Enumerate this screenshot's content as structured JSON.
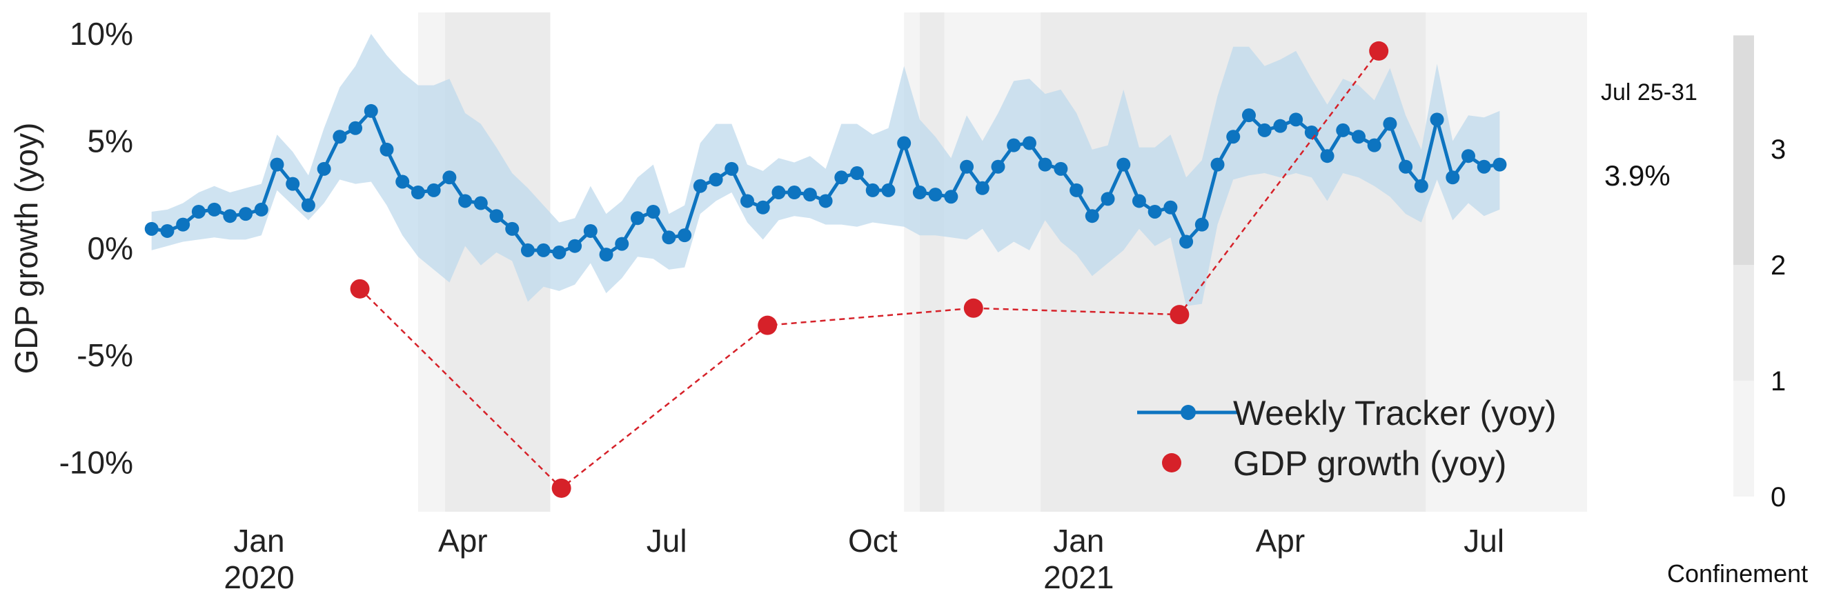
{
  "chart_data": {
    "type": "line",
    "ylabel": "GDP growth (yoy)",
    "y_ticks": [
      "10%",
      "5%",
      "0%",
      "-5%",
      "-10%"
    ],
    "y_tick_values": [
      10,
      5,
      0,
      -5,
      -10
    ],
    "ylim": [
      -12.3,
      11.0
    ],
    "xlim": [
      "2019-11-11",
      "2021-08-16"
    ],
    "x_ticks": [
      {
        "date": "2020-01-01",
        "label": "Jan",
        "year": "2020"
      },
      {
        "date": "2020-04-01",
        "label": "Apr",
        "year": ""
      },
      {
        "date": "2020-07-01",
        "label": "Jul",
        "year": ""
      },
      {
        "date": "2020-10-01",
        "label": "Oct",
        "year": ""
      },
      {
        "date": "2021-01-01",
        "label": "Jan",
        "year": "2021"
      },
      {
        "date": "2021-04-01",
        "label": "Apr",
        "year": ""
      },
      {
        "date": "2021-07-01",
        "label": "Jul",
        "year": ""
      }
    ],
    "grid": false,
    "legend_position": "bottom-right",
    "series": [
      {
        "name": "Weekly Tracker (yoy)",
        "color": "#0d74c0",
        "band_color": "#bcd8ec",
        "start_date": "2019-11-14",
        "step_days": 7,
        "values": [
          0.9,
          0.8,
          1.1,
          1.7,
          1.8,
          1.5,
          1.6,
          1.8,
          3.9,
          3.0,
          2.0,
          3.7,
          5.2,
          5.6,
          6.4,
          4.6,
          3.1,
          2.6,
          2.7,
          3.3,
          2.2,
          2.1,
          1.5,
          0.9,
          -0.1,
          -0.1,
          -0.2,
          0.1,
          0.8,
          -0.3,
          0.2,
          1.4,
          1.7,
          0.5,
          0.6,
          2.9,
          3.2,
          3.7,
          2.2,
          1.9,
          2.6,
          2.6,
          2.5,
          2.2,
          3.3,
          3.5,
          2.7,
          2.7,
          4.9,
          2.6,
          2.5,
          2.4,
          3.8,
          2.8,
          3.8,
          4.8,
          4.9,
          3.9,
          3.7,
          2.7,
          1.5,
          2.3,
          3.9,
          2.2,
          1.7,
          1.9,
          0.3,
          1.1,
          3.9,
          5.2,
          6.2,
          5.5,
          5.7,
          6.0,
          5.4,
          4.3,
          5.5,
          5.2,
          4.8,
          5.8,
          3.8,
          2.9,
          6.0,
          3.3,
          4.3,
          3.8,
          3.9
        ],
        "band_low": [
          -0.1,
          0.1,
          0.3,
          0.4,
          0.5,
          0.4,
          0.4,
          0.6,
          2.7,
          2.0,
          1.3,
          2.1,
          3.2,
          3.0,
          3.1,
          2.0,
          0.6,
          -0.4,
          -1.0,
          -1.6,
          0.1,
          -0.8,
          -0.2,
          -0.6,
          -2.5,
          -1.8,
          -2.0,
          -1.7,
          -0.7,
          -2.1,
          -1.4,
          -0.4,
          -0.5,
          -1.0,
          -0.9,
          1.6,
          2.2,
          2.6,
          1.2,
          0.4,
          1.3,
          1.5,
          1.4,
          1.1,
          1.1,
          1.0,
          1.2,
          1.1,
          1.0,
          0.6,
          0.6,
          0.5,
          0.4,
          0.9,
          -0.2,
          0.3,
          -0.1,
          1.3,
          0.3,
          -0.3,
          -1.3,
          -0.7,
          -0.1,
          0.9,
          0.1,
          0.5,
          -2.7,
          -2.6,
          1.1,
          3.2,
          3.4,
          3.5,
          3.3,
          3.5,
          3.3,
          2.2,
          3.5,
          3.3,
          2.9,
          2.4,
          1.6,
          1.2,
          3.2,
          1.3,
          2.1,
          1.5,
          1.8
        ],
        "band_high": [
          1.7,
          1.8,
          2.1,
          2.6,
          2.9,
          2.6,
          2.8,
          3.0,
          5.3,
          4.5,
          3.4,
          5.6,
          7.5,
          8.5,
          10.0,
          9.0,
          8.2,
          7.6,
          7.6,
          7.9,
          6.3,
          5.8,
          4.7,
          3.5,
          2.8,
          2.0,
          1.2,
          1.4,
          2.9,
          1.6,
          2.2,
          3.3,
          3.9,
          1.6,
          2.0,
          4.9,
          5.8,
          5.8,
          3.9,
          3.6,
          4.2,
          4.0,
          4.3,
          3.7,
          5.8,
          5.8,
          5.3,
          5.6,
          8.5,
          6.0,
          5.2,
          4.2,
          6.2,
          5.0,
          6.3,
          7.8,
          7.9,
          7.2,
          7.4,
          6.3,
          4.6,
          4.8,
          7.4,
          4.7,
          4.7,
          5.3,
          3.3,
          4.1,
          7.1,
          9.4,
          9.4,
          8.5,
          8.8,
          9.2,
          7.9,
          6.7,
          7.9,
          7.6,
          6.9,
          8.4,
          6.2,
          4.6,
          8.6,
          5.0,
          6.2,
          6.1,
          6.4
        ]
      },
      {
        "name": "GDP growth (yoy)",
        "color": "#d62129",
        "dates": [
          "2020-02-15",
          "2020-05-15",
          "2020-08-15",
          "2020-11-15",
          "2021-02-15",
          "2021-05-15"
        ],
        "values": [
          -1.9,
          -11.2,
          -3.6,
          -2.8,
          -3.1,
          9.2
        ]
      }
    ],
    "confinement": {
      "label": "Confinement",
      "scale_ticks": [
        "3",
        "2",
        "1",
        "0"
      ],
      "scale_tick_values": [
        3,
        2,
        1,
        0
      ],
      "scale_colors": [
        "#dcdcdc",
        "#ebebeb",
        "#f4f4f4"
      ],
      "periods": [
        {
          "start": "2020-03-12",
          "end": "2020-03-24",
          "level": 1
        },
        {
          "start": "2020-03-24",
          "end": "2020-05-10",
          "level": 2
        },
        {
          "start": "2020-10-15",
          "end": "2020-10-22",
          "level": 1
        },
        {
          "start": "2020-10-22",
          "end": "2020-11-02",
          "level": 2
        },
        {
          "start": "2020-11-02",
          "end": "2020-12-15",
          "level": 1
        },
        {
          "start": "2020-12-15",
          "end": "2021-06-05",
          "level": 2
        },
        {
          "start": "2021-06-05",
          "end": "2021-08-16",
          "level": 1
        }
      ]
    },
    "annotations": {
      "latest_week": "Jul 25-31",
      "latest_value": "3.9%"
    }
  }
}
